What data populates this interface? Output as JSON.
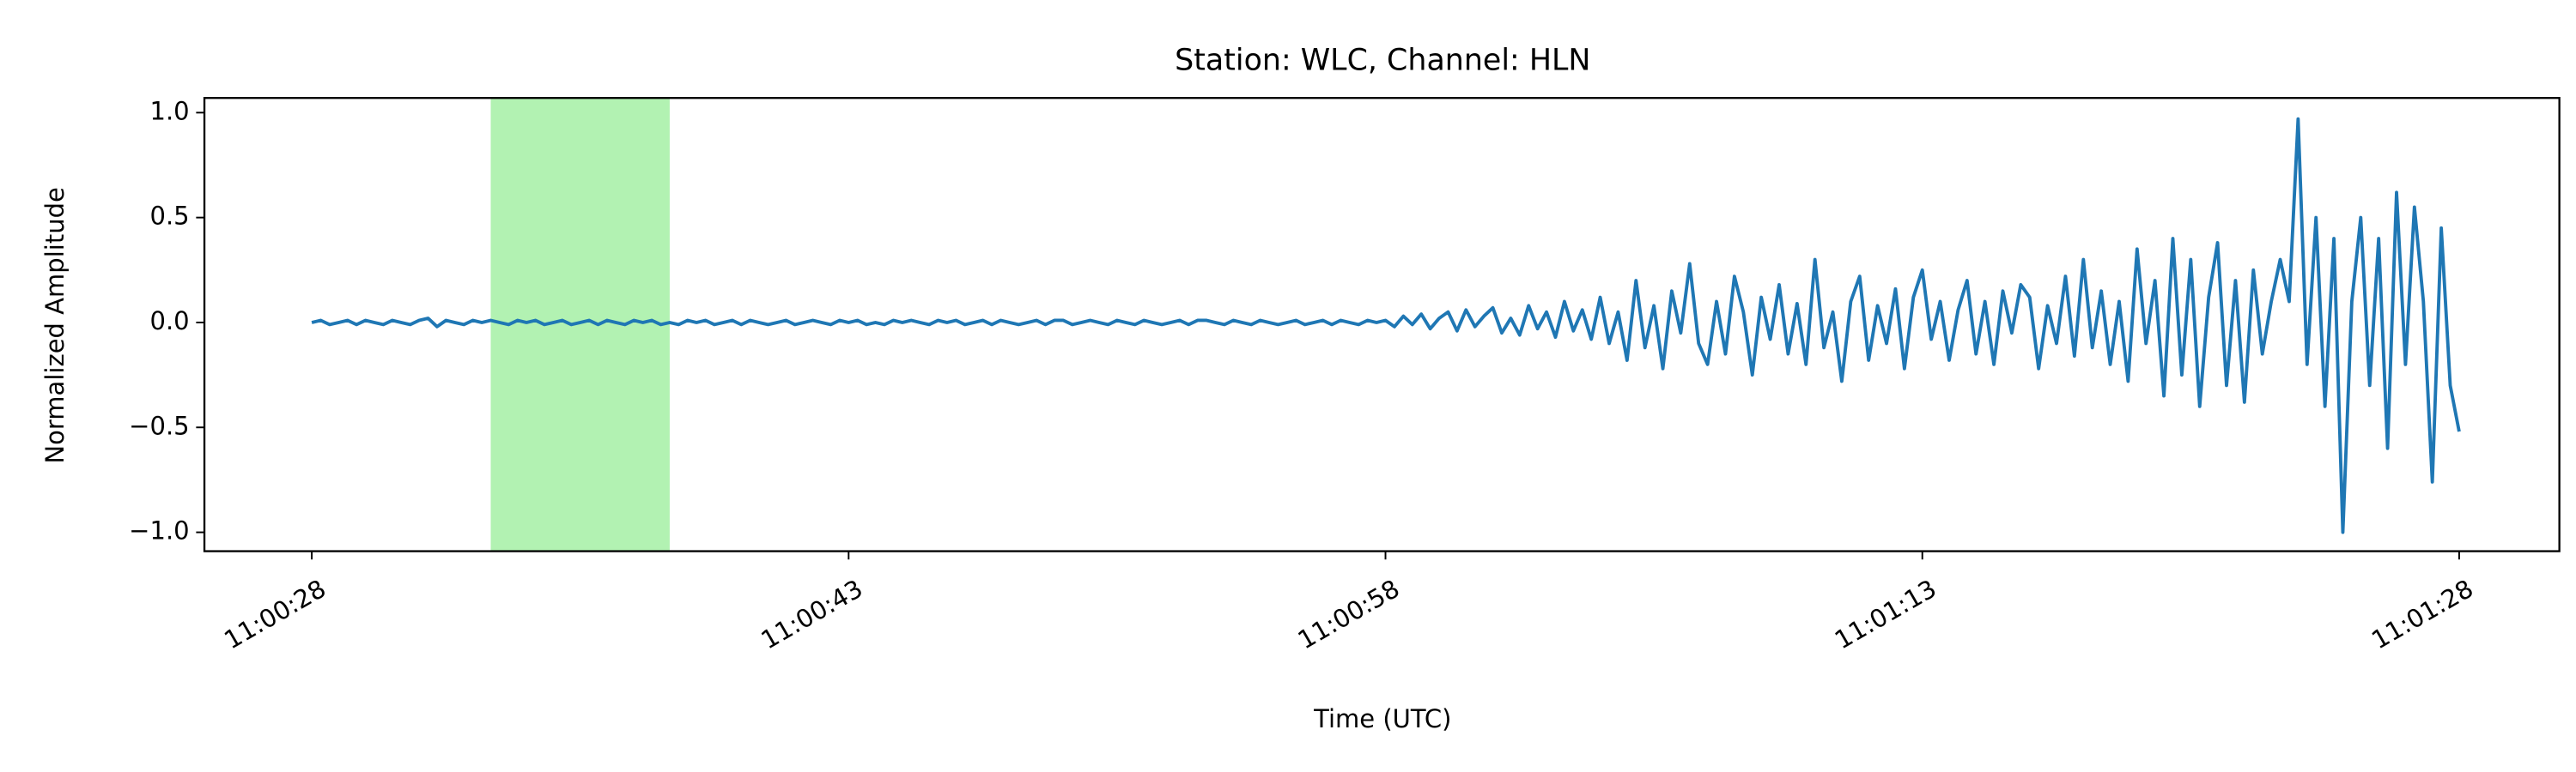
{
  "chart_data": {
    "type": "line",
    "title": "Station: WLC, Channel: HLN",
    "x_label": "Time (UTC)",
    "y_label": "Normalized Amplitude",
    "color": "#1f77b4",
    "xlim": [
      39625.0,
      39690.8
    ],
    "ylim": [
      -1.09,
      1.07
    ],
    "xticks": [
      {
        "value": 39628,
        "label": "11:00:28"
      },
      {
        "value": 39643,
        "label": "11:00:43"
      },
      {
        "value": 39658,
        "label": "11:00:58"
      },
      {
        "value": 39673,
        "label": "11:01:13"
      },
      {
        "value": 39688,
        "label": "11:01:28"
      }
    ],
    "yticks": [
      {
        "value": -1,
        "label": "−1.0"
      },
      {
        "value": -0.5,
        "label": "−0.5"
      },
      {
        "value": 0,
        "label": "0.0"
      },
      0.5,
      {
        "value": 1,
        "label": "1.0"
      }
    ],
    "highlight_span": {
      "x": [
        39633,
        39638
      ],
      "color": "#b2f2b2"
    },
    "x": [
      39628,
      39628.25,
      39628.5,
      39628.75,
      39629,
      39629.25,
      39629.5,
      39629.75,
      39630,
      39630.25,
      39630.5,
      39630.75,
      39631,
      39631.25,
      39631.5,
      39631.75,
      39632,
      39632.25,
      39632.5,
      39632.75,
      39633,
      39633.25,
      39633.5,
      39633.75,
      39634,
      39634.25,
      39634.5,
      39634.75,
      39635,
      39635.25,
      39635.5,
      39635.75,
      39636,
      39636.25,
      39636.5,
      39636.75,
      39637,
      39637.25,
      39637.5,
      39637.75,
      39638,
      39638.25,
      39638.5,
      39638.75,
      39639,
      39639.25,
      39639.5,
      39639.75,
      39640,
      39640.25,
      39640.5,
      39640.75,
      39641,
      39641.25,
      39641.5,
      39641.75,
      39642,
      39642.25,
      39642.5,
      39642.75,
      39643,
      39643.25,
      39643.5,
      39643.75,
      39644,
      39644.25,
      39644.5,
      39644.75,
      39645,
      39645.25,
      39645.5,
      39645.75,
      39646,
      39646.25,
      39646.5,
      39646.75,
      39647,
      39647.25,
      39647.5,
      39647.75,
      39648,
      39648.25,
      39648.5,
      39648.75,
      39649,
      39649.25,
      39649.5,
      39649.75,
      39650,
      39650.25,
      39650.5,
      39650.75,
      39651,
      39651.25,
      39651.5,
      39651.75,
      39652,
      39652.25,
      39652.5,
      39652.75,
      39653,
      39653.25,
      39653.5,
      39653.75,
      39654,
      39654.25,
      39654.5,
      39654.75,
      39655,
      39655.25,
      39655.5,
      39655.75,
      39656,
      39656.25,
      39656.5,
      39656.75,
      39657,
      39657.25,
      39657.5,
      39657.75,
      39658,
      39658.25,
      39658.5,
      39658.75,
      39659,
      39659.25,
      39659.5,
      39659.75,
      39660,
      39660.25,
      39660.5,
      39660.75,
      39661,
      39661.25,
      39661.5,
      39661.75,
      39662,
      39662.25,
      39662.5,
      39662.75,
      39663,
      39663.25,
      39663.5,
      39663.75,
      39664,
      39664.25,
      39664.5,
      39664.75,
      39665,
      39665.25,
      39665.5,
      39665.75,
      39666,
      39666.25,
      39666.5,
      39666.75,
      39667,
      39667.25,
      39667.5,
      39667.75,
      39668,
      39668.25,
      39668.5,
      39668.75,
      39669,
      39669.25,
      39669.5,
      39669.75,
      39670,
      39670.25,
      39670.5,
      39670.75,
      39671,
      39671.25,
      39671.5,
      39671.75,
      39672,
      39672.25,
      39672.5,
      39672.75,
      39673,
      39673.25,
      39673.5,
      39673.75,
      39674,
      39674.25,
      39674.5,
      39674.75,
      39675,
      39675.25,
      39675.5,
      39675.75,
      39676,
      39676.25,
      39676.5,
      39676.75,
      39677,
      39677.25,
      39677.5,
      39677.75,
      39678,
      39678.25,
      39678.5,
      39678.75,
      39679,
      39679.25,
      39679.5,
      39679.75,
      39680,
      39680.25,
      39680.5,
      39680.75,
      39681,
      39681.25,
      39681.5,
      39681.75,
      39682,
      39682.25,
      39682.5,
      39682.75,
      39683,
      39683.25,
      39683.5,
      39683.75,
      39684,
      39684.25,
      39684.5,
      39684.75,
      39685,
      39685.25,
      39685.5,
      39685.75,
      39686,
      39686.25,
      39686.5,
      39686.75,
      39687,
      39687.25,
      39687.5,
      39687.75,
      39688
    ],
    "values": [
      0,
      0.01,
      -0.01,
      0,
      0.01,
      -0.01,
      0.01,
      0,
      -0.01,
      0.01,
      0,
      -0.01,
      0.01,
      0.02,
      -0.02,
      0.01,
      0,
      -0.01,
      0.01,
      0,
      0.01,
      0,
      -0.01,
      0.01,
      0,
      0.01,
      -0.01,
      0,
      0.01,
      -0.01,
      0,
      0.01,
      -0.01,
      0.01,
      0,
      -0.01,
      0.01,
      0,
      0.01,
      -0.01,
      0,
      -0.01,
      0.01,
      0,
      0.01,
      -0.01,
      0,
      0.01,
      -0.01,
      0.01,
      0,
      -0.01,
      0,
      0.01,
      -0.01,
      0,
      0.01,
      0,
      -0.01,
      0.01,
      0,
      0.01,
      -0.01,
      0,
      -0.01,
      0.01,
      0,
      0.01,
      0,
      -0.01,
      0.01,
      0,
      0.01,
      -0.01,
      0,
      0.01,
      -0.01,
      0.01,
      0,
      -0.01,
      0,
      0.01,
      -0.01,
      0.01,
      0.01,
      -0.01,
      0,
      0.01,
      0,
      -0.01,
      0.01,
      0,
      -0.01,
      0.01,
      0,
      -0.01,
      0,
      0.01,
      -0.01,
      0.01,
      0.01,
      0,
      -0.01,
      0.01,
      0,
      -0.01,
      0.01,
      0,
      -0.01,
      0,
      0.01,
      -0.01,
      0,
      0.01,
      -0.01,
      0.01,
      0,
      -0.01,
      0.01,
      0,
      0.01,
      -0.02,
      0.03,
      -0.01,
      0.04,
      -0.03,
      0.02,
      0.05,
      -0.04,
      0.06,
      -0.02,
      0.03,
      0.07,
      -0.05,
      0.02,
      -0.06,
      0.08,
      -0.03,
      0.05,
      -0.07,
      0.1,
      -0.04,
      0.06,
      -0.08,
      0.12,
      -0.1,
      0.05,
      -0.18,
      0.2,
      -0.12,
      0.08,
      -0.22,
      0.15,
      -0.05,
      0.28,
      -0.1,
      -0.2,
      0.1,
      -0.15,
      0.22,
      0.05,
      -0.25,
      0.12,
      -0.08,
      0.18,
      -0.15,
      0.09,
      -0.2,
      0.3,
      -0.12,
      0.05,
      -0.28,
      0.1,
      0.22,
      -0.18,
      0.08,
      -0.1,
      0.16,
      -0.22,
      0.12,
      0.25,
      -0.08,
      0.1,
      -0.18,
      0.06,
      0.2,
      -0.15,
      0.1,
      -0.2,
      0.15,
      -0.05,
      0.18,
      0.12,
      -0.22,
      0.08,
      -0.1,
      0.22,
      -0.16,
      0.3,
      -0.12,
      0.15,
      -0.2,
      0.1,
      -0.28,
      0.35,
      -0.1,
      0.2,
      -0.35,
      0.4,
      -0.25,
      0.3,
      -0.4,
      0.12,
      0.38,
      -0.3,
      0.2,
      -0.38,
      0.25,
      -0.15,
      0.1,
      0.3,
      0.1,
      0.97,
      -0.2,
      0.5,
      -0.4,
      0.4,
      -1.0,
      0.1,
      0.5,
      -0.3,
      0.4,
      -0.6,
      0.62,
      -0.2,
      0.55,
      0.1,
      -0.76,
      0.45,
      -0.3,
      -0.52
    ]
  }
}
